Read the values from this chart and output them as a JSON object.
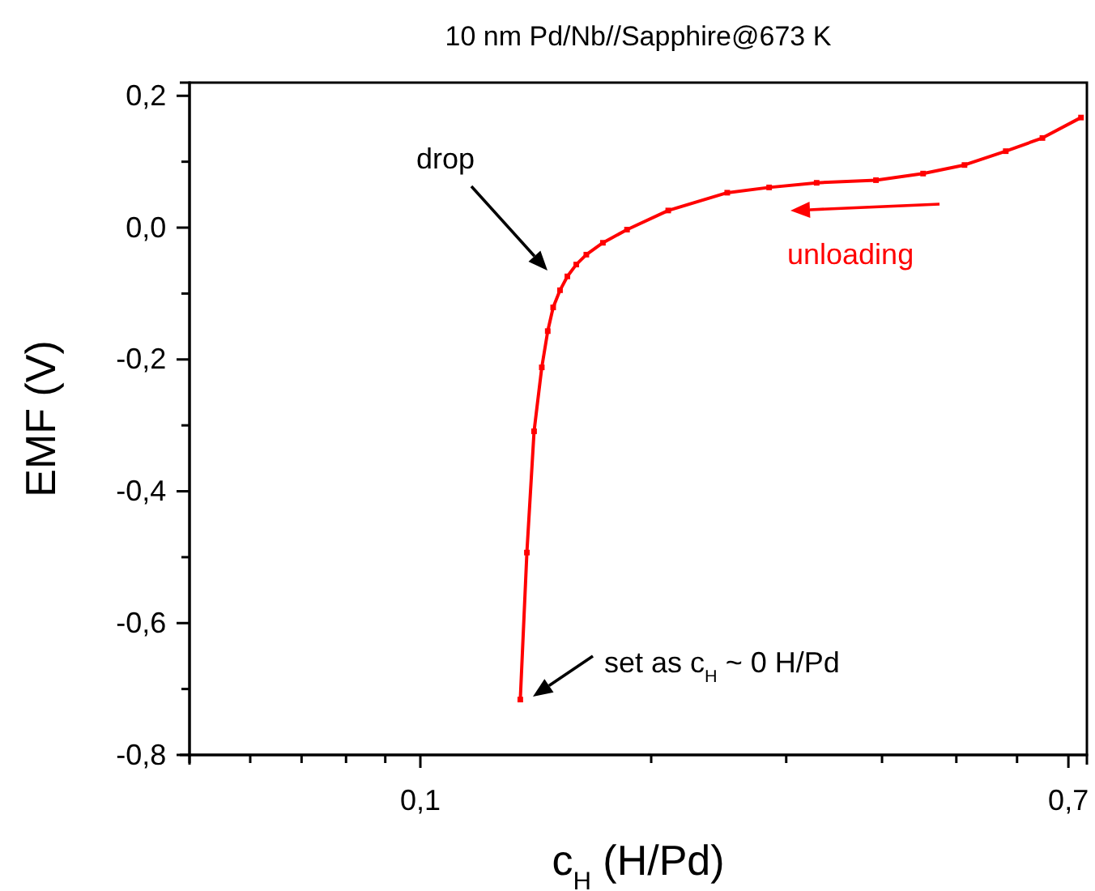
{
  "chart_data": {
    "type": "line",
    "title": "10 nm Pd/Nb//Sapphire@673 K",
    "xlabel": "c$_{H}$ (H/Pd)",
    "ylabel": "EMF (V)",
    "log": "x",
    "marker": "square",
    "line_style": "solid",
    "grid": false,
    "x": [
      0.135,
      0.1377,
      0.1407,
      0.144,
      0.1466,
      0.149,
      0.1521,
      0.1555,
      0.1597,
      0.1646,
      0.173,
      0.186,
      0.2105,
      0.2513,
      0.285,
      0.3287,
      0.3928,
      0.4525,
      0.5124,
      0.58,
      0.6475,
      0.727
    ],
    "series": [
      {
        "color": "#ff0000",
        "values": [
          -0.716,
          -0.493,
          -0.309,
          -0.212,
          -0.157,
          -0.121,
          -0.095,
          -0.074,
          -0.056,
          -0.041,
          -0.023,
          -0.003,
          0.026,
          0.053,
          0.061,
          0.068,
          0.072,
          0.082,
          0.095,
          0.116,
          0.136,
          0.167
        ]
      }
    ],
    "xlim": [
      0.05,
      0.74
    ],
    "xticks": [
      {
        "value": 0.05,
        "label": null
      },
      {
        "value": 0.06,
        "label": null
      },
      {
        "value": 0.07,
        "label": null
      },
      {
        "value": 0.08,
        "label": null
      },
      {
        "value": 0.09,
        "label": null
      },
      {
        "value": 0.1,
        "label": "0,1"
      },
      {
        "value": 0.2,
        "label": null
      },
      {
        "value": 0.3,
        "label": null
      },
      {
        "value": 0.4,
        "label": null
      },
      {
        "value": 0.5,
        "label": null
      },
      {
        "value": 0.6,
        "label": null
      },
      {
        "value": 0.7,
        "label": "0,7"
      }
    ],
    "ylim": [
      -0.8,
      0.22
    ],
    "yticks": [
      {
        "value": -0.8,
        "label": "-0,8"
      },
      {
        "value": -0.7,
        "label": null
      },
      {
        "value": -0.6,
        "label": "-0,6"
      },
      {
        "value": -0.5,
        "label": null
      },
      {
        "value": -0.4,
        "label": "-0,4"
      },
      {
        "value": -0.3,
        "label": null
      },
      {
        "value": -0.2,
        "label": "-0,2"
      },
      {
        "value": -0.1,
        "label": null
      },
      {
        "value": 0,
        "label": "0,0"
      },
      {
        "value": 0.1,
        "label": null
      },
      {
        "value": 0.2,
        "label": "0,2"
      }
    ],
    "annotations": [
      "drop",
      "set as c$_{H}$ ~ 0 H/Pd",
      "unloading"
    ]
  }
}
